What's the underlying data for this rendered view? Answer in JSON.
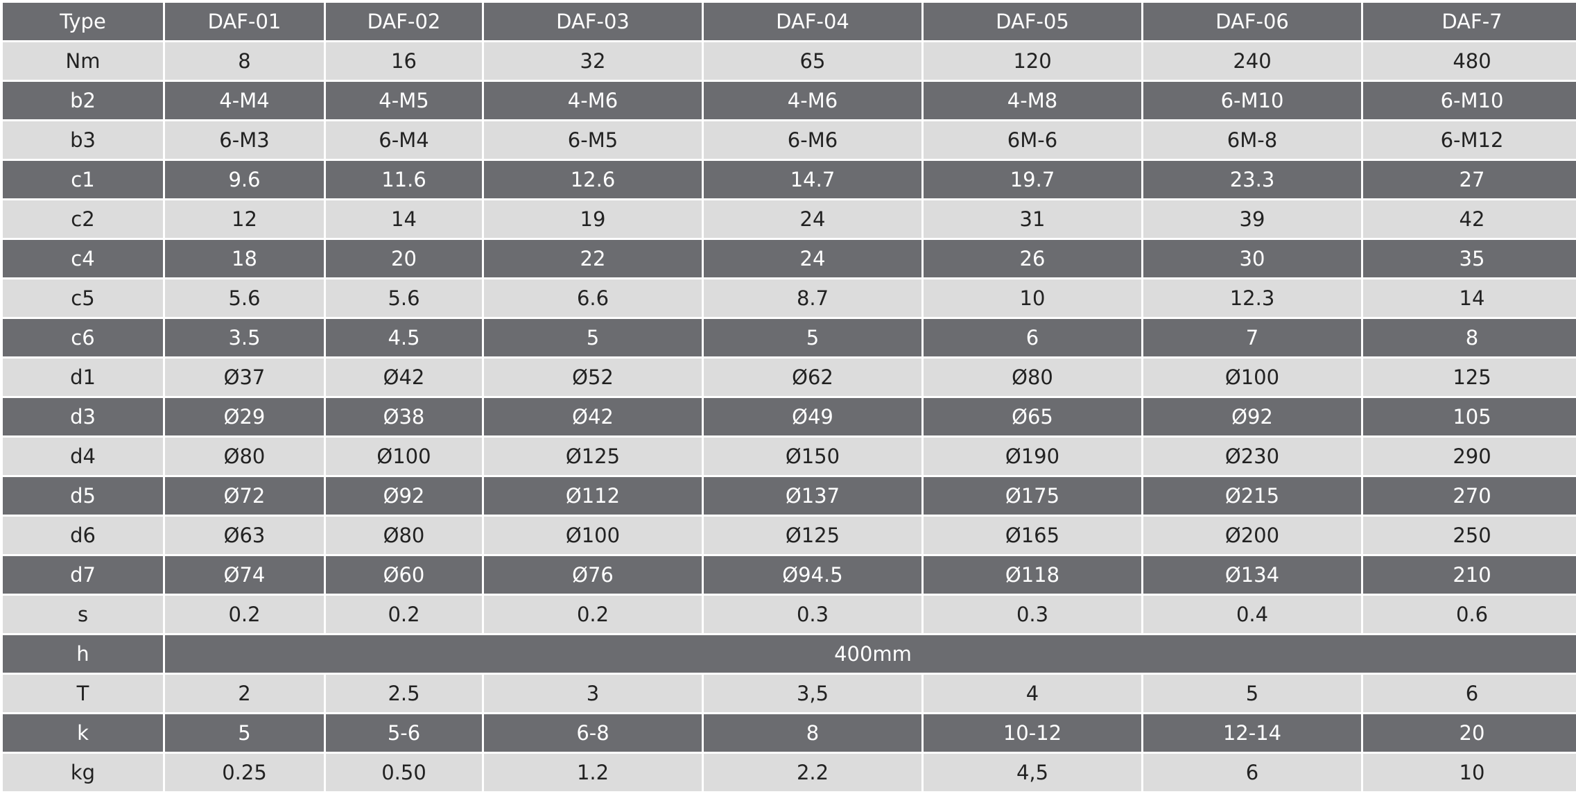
{
  "table": {
    "header": [
      "Type",
      "DAF-01",
      "DAF-02",
      "DAF-03",
      "DAF-04",
      "DAF-05",
      "DAF-06",
      "DAF-7"
    ],
    "rows": [
      [
        "Nm",
        "8",
        "16",
        "32",
        "65",
        "120",
        "240",
        "480"
      ],
      [
        "b2",
        "4-M4",
        "4-M5",
        "4-M6",
        "4-M6",
        "4-M8",
        "6-M10",
        "6-M10"
      ],
      [
        "b3",
        "6-M3",
        "6-M4",
        "6-M5",
        "6-M6",
        "6M-6",
        "6M-8",
        "6-M12"
      ],
      [
        "c1",
        "9.6",
        "11.6",
        "12.6",
        "14.7",
        "19.7",
        "23.3",
        "27"
      ],
      [
        "c2",
        "12",
        "14",
        "19",
        "24",
        "31",
        "39",
        "42"
      ],
      [
        "c4",
        "18",
        "20",
        "22",
        "24",
        "26",
        "30",
        "35"
      ],
      [
        "c5",
        "5.6",
        "5.6",
        "6.6",
        "8.7",
        "10",
        "12.3",
        "14"
      ],
      [
        "c6",
        "3.5",
        "4.5",
        "5",
        "5",
        "6",
        "7",
        "8"
      ],
      [
        "d1",
        "Ø37",
        "Ø42",
        "Ø52",
        "Ø62",
        "Ø80",
        "Ø100",
        "125"
      ],
      [
        "d3",
        "Ø29",
        "Ø38",
        "Ø42",
        "Ø49",
        "Ø65",
        "Ø92",
        "105"
      ],
      [
        "d4",
        "Ø80",
        "Ø100",
        "Ø125",
        "Ø150",
        "Ø190",
        "Ø230",
        "290"
      ],
      [
        "d5",
        "Ø72",
        "Ø92",
        "Ø112",
        "Ø137",
        "Ø175",
        "Ø215",
        "270"
      ],
      [
        "d6",
        "Ø63",
        "Ø80",
        "Ø100",
        "Ø125",
        "Ø165",
        "Ø200",
        "250"
      ],
      [
        "d7",
        "Ø74",
        "Ø60",
        "Ø76",
        "Ø94.5",
        "Ø118",
        "Ø134",
        "210"
      ],
      [
        "s",
        "0.2",
        "0.2",
        "0.2",
        "0.3",
        "0.3",
        "0.4",
        "0.6"
      ],
      [
        "h",
        "400mm"
      ],
      [
        "T",
        "2",
        "2.5",
        "3",
        "3,5",
        "4",
        "5",
        "6"
      ],
      [
        "k",
        "5",
        "5-6",
        "6-8",
        "8",
        "10-12",
        "12-14",
        "20"
      ],
      [
        "kg",
        "0.25",
        "0.50",
        "1.2",
        "2.2",
        "4,5",
        "6",
        "10"
      ]
    ]
  }
}
